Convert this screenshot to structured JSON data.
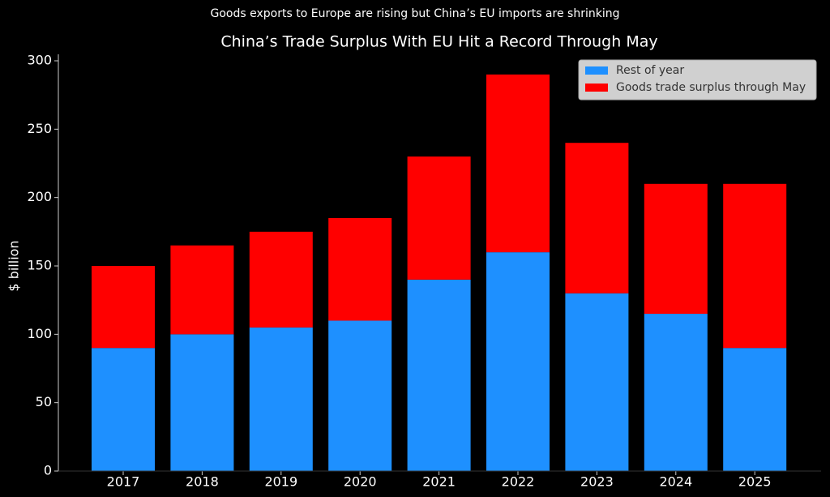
{
  "chart_data": {
    "type": "bar",
    "stacked": true,
    "subtitle": "Goods exports to Europe are rising but China’s EU imports are shrinking",
    "title": "China’s Trade Surplus With EU Hit a Record Through May",
    "ylabel": "$ billion",
    "categories": [
      "2017",
      "2018",
      "2019",
      "2020",
      "2021",
      "2022",
      "2023",
      "2024",
      "2025"
    ],
    "series": [
      {
        "name": "Rest of year",
        "color": "#1e90ff",
        "values": [
          90,
          100,
          105,
          110,
          140,
          160,
          130,
          115,
          90
        ]
      },
      {
        "name": "Goods trade surplus through May",
        "color": "#ff0000",
        "values": [
          60,
          65,
          70,
          75,
          90,
          130,
          110,
          95,
          120
        ]
      }
    ],
    "ylim": [
      0,
      300
    ],
    "yticks": [
      0,
      50,
      100,
      150,
      200,
      250,
      300
    ],
    "legend": "upper right"
  }
}
